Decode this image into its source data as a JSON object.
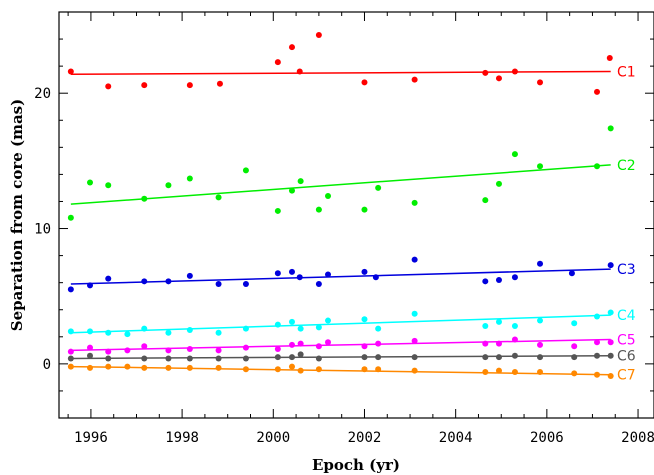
{
  "chart_data": {
    "type": "scatter",
    "title": "",
    "xlabel": "Epoch (yr)",
    "ylabel": "Separation from core (mas)",
    "xlim": [
      1995.3,
      2008.35
    ],
    "ylim": [
      -4,
      26
    ],
    "x_ticks": [
      "1996",
      "1998",
      "2000",
      "2002",
      "2004",
      "2006",
      "2008"
    ],
    "y_ticks": [
      "0",
      "10",
      "20"
    ],
    "grid": false,
    "legend": "series labels at right end of fit lines",
    "series": [
      {
        "name": "C1",
        "color": "#ff0000",
        "x": [
          1995.56,
          1996.38,
          1997.17,
          1998.17,
          1998.83,
          2000.1,
          2000.41,
          2000.58,
          2001.0,
          2002.0,
          2003.1,
          2004.65,
          2004.95,
          2005.3,
          2005.85,
          2007.1,
          2007.38
        ],
        "y": [
          21.6,
          20.5,
          20.6,
          20.6,
          20.7,
          22.3,
          23.4,
          21.6,
          24.3,
          20.8,
          21.0,
          21.5,
          21.1,
          21.6,
          20.8,
          20.1,
          22.6
        ],
        "fit": [
          [
            1995.56,
            21.4
          ],
          [
            2007.4,
            21.6
          ]
        ]
      },
      {
        "name": "C2",
        "color": "#00ee00",
        "x": [
          1995.56,
          1995.98,
          1996.38,
          1997.17,
          1997.7,
          1998.17,
          1998.8,
          1999.4,
          2000.1,
          2000.41,
          2000.6,
          2001.0,
          2001.2,
          2002.0,
          2002.3,
          2003.1,
          2004.65,
          2004.95,
          2005.3,
          2005.85,
          2007.1,
          2007.4
        ],
        "y": [
          10.8,
          13.4,
          13.2,
          12.2,
          13.2,
          13.7,
          12.3,
          14.3,
          11.3,
          12.8,
          13.5,
          11.4,
          12.4,
          11.4,
          13.0,
          11.9,
          12.1,
          13.3,
          15.5,
          14.6,
          14.6,
          17.4
        ],
        "fit": [
          [
            1995.56,
            11.8
          ],
          [
            2007.4,
            14.7
          ]
        ]
      },
      {
        "name": "C3",
        "color": "#0000dd",
        "x": [
          1995.56,
          1995.98,
          1996.38,
          1997.17,
          1997.7,
          1998.17,
          1998.8,
          1999.4,
          2000.1,
          2000.41,
          2000.58,
          2001.0,
          2001.2,
          2002.0,
          2002.25,
          2003.1,
          2004.65,
          2004.95,
          2005.3,
          2005.85,
          2006.55,
          2007.4
        ],
        "y": [
          5.5,
          5.8,
          6.3,
          6.1,
          6.1,
          6.5,
          5.9,
          5.9,
          6.7,
          6.8,
          6.4,
          5.9,
          6.6,
          6.8,
          6.4,
          7.7,
          6.1,
          6.2,
          6.4,
          7.4,
          6.7,
          7.3
        ],
        "fit": [
          [
            1995.56,
            5.9
          ],
          [
            2007.4,
            7.0
          ]
        ]
      },
      {
        "name": "C4",
        "color": "#00ffff",
        "x": [
          1995.56,
          1995.98,
          1996.38,
          1996.8,
          1997.17,
          1997.7,
          1998.17,
          1998.8,
          1999.4,
          2000.1,
          2000.41,
          2000.6,
          2001.0,
          2001.2,
          2002.0,
          2002.3,
          2003.1,
          2004.65,
          2004.95,
          2005.3,
          2005.85,
          2006.6,
          2007.1,
          2007.4
        ],
        "y": [
          2.4,
          2.4,
          2.3,
          2.2,
          2.6,
          2.3,
          2.5,
          2.3,
          2.6,
          2.9,
          3.1,
          2.6,
          2.7,
          3.2,
          3.3,
          2.6,
          3.7,
          2.8,
          3.1,
          2.8,
          3.2,
          3.0,
          3.5,
          3.8
        ],
        "fit": [
          [
            1995.56,
            2.3
          ],
          [
            2007.4,
            3.6
          ]
        ]
      },
      {
        "name": "C5",
        "color": "#ff00ff",
        "x": [
          1995.56,
          1995.98,
          1996.38,
          1996.8,
          1997.17,
          1997.7,
          1998.17,
          1998.8,
          1999.4,
          2000.1,
          2000.41,
          2000.6,
          2001.0,
          2001.2,
          2002.0,
          2002.3,
          2003.1,
          2004.65,
          2004.95,
          2005.3,
          2005.85,
          2006.6,
          2007.1,
          2007.4
        ],
        "y": [
          0.9,
          1.2,
          0.9,
          1.0,
          1.3,
          1.0,
          1.1,
          1.0,
          1.2,
          1.1,
          1.4,
          1.5,
          1.3,
          1.6,
          1.3,
          1.5,
          1.7,
          1.5,
          1.5,
          1.8,
          1.4,
          1.3,
          1.6,
          1.6
        ],
        "fit": [
          [
            1995.56,
            1.0
          ],
          [
            2007.4,
            1.8
          ]
        ]
      },
      {
        "name": "C6",
        "color": "#555555",
        "x": [
          1995.56,
          1995.98,
          1996.38,
          1997.17,
          1997.7,
          1998.17,
          1998.8,
          1999.4,
          2000.1,
          2000.41,
          2000.6,
          2001.0,
          2002.0,
          2002.3,
          2003.1,
          2004.65,
          2004.95,
          2005.3,
          2005.85,
          2006.6,
          2007.1,
          2007.4
        ],
        "y": [
          0.4,
          0.6,
          0.4,
          0.4,
          0.4,
          0.4,
          0.4,
          0.4,
          0.5,
          0.5,
          0.7,
          0.4,
          0.5,
          0.5,
          0.5,
          0.5,
          0.5,
          0.6,
          0.5,
          0.5,
          0.6,
          0.6
        ],
        "fit": [
          [
            1995.56,
            0.4
          ],
          [
            2007.4,
            0.6
          ]
        ]
      },
      {
        "name": "C7",
        "color": "#ff8800",
        "x": [
          1995.56,
          1995.98,
          1996.38,
          1996.8,
          1997.17,
          1997.7,
          1998.17,
          1998.8,
          1999.4,
          2000.1,
          2000.41,
          2000.6,
          2001.0,
          2002.0,
          2002.3,
          2003.1,
          2004.65,
          2004.95,
          2005.3,
          2005.85,
          2006.6,
          2007.1,
          2007.4
        ],
        "y": [
          -0.2,
          -0.3,
          -0.2,
          -0.2,
          -0.3,
          -0.3,
          -0.3,
          -0.3,
          -0.4,
          -0.4,
          -0.2,
          -0.5,
          -0.4,
          -0.4,
          -0.4,
          -0.5,
          -0.6,
          -0.5,
          -0.6,
          -0.6,
          -0.7,
          -0.8,
          -0.9
        ],
        "fit": [
          [
            1995.56,
            -0.2
          ],
          [
            2007.4,
            -0.8
          ]
        ]
      }
    ]
  }
}
